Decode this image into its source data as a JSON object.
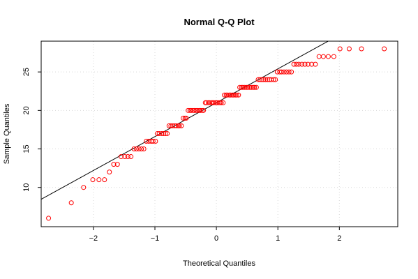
{
  "chart_data": {
    "type": "scatter",
    "title": "Normal Q-Q Plot",
    "xlabel": "Theoretical Quantiles",
    "ylabel": "Sample Quantiles",
    "xlim": [
      -2.85,
      2.95
    ],
    "ylim": [
      4.9,
      29.0
    ],
    "x_ticks": [
      -2,
      -1,
      0,
      1,
      2
    ],
    "y_ticks": [
      10,
      15,
      20,
      25
    ],
    "grid": true,
    "point_color": "#ff0000",
    "line_color": "#000000",
    "reference_line": {
      "intercept": 21.0,
      "slope": 4.4
    },
    "points": [
      [
        -2.73,
        6
      ],
      [
        -2.36,
        8
      ],
      [
        -2.16,
        10
      ],
      [
        -2.01,
        11
      ],
      [
        -1.91,
        11
      ],
      [
        -1.82,
        11
      ],
      [
        -1.74,
        12
      ],
      [
        -1.67,
        13
      ],
      [
        -1.61,
        13
      ],
      [
        -1.55,
        14
      ],
      [
        -1.49,
        14
      ],
      [
        -1.44,
        14
      ],
      [
        -1.39,
        14
      ],
      [
        -1.34,
        15
      ],
      [
        -1.3,
        15
      ],
      [
        -1.26,
        15
      ],
      [
        -1.22,
        15
      ],
      [
        -1.18,
        15
      ],
      [
        -1.14,
        16
      ],
      [
        -1.1,
        16
      ],
      [
        -1.06,
        16
      ],
      [
        -1.03,
        16
      ],
      [
        -0.99,
        16
      ],
      [
        -0.96,
        17
      ],
      [
        -0.93,
        17
      ],
      [
        -0.89,
        17
      ],
      [
        -0.86,
        17
      ],
      [
        -0.83,
        17
      ],
      [
        -0.8,
        17
      ],
      [
        -0.77,
        18
      ],
      [
        -0.74,
        18
      ],
      [
        -0.71,
        18
      ],
      [
        -0.68,
        18
      ],
      [
        -0.65,
        18
      ],
      [
        -0.62,
        18
      ],
      [
        -0.6,
        18
      ],
      [
        -0.57,
        18
      ],
      [
        -0.54,
        19
      ],
      [
        -0.51,
        19
      ],
      [
        -0.49,
        19
      ],
      [
        -0.46,
        20
      ],
      [
        -0.43,
        20
      ],
      [
        -0.41,
        20
      ],
      [
        -0.38,
        20
      ],
      [
        -0.36,
        20
      ],
      [
        -0.33,
        20
      ],
      [
        -0.31,
        20
      ],
      [
        -0.28,
        20
      ],
      [
        -0.26,
        20
      ],
      [
        -0.23,
        20
      ],
      [
        -0.21,
        20
      ],
      [
        -0.18,
        21
      ],
      [
        -0.16,
        21
      ],
      [
        -0.13,
        21
      ],
      [
        -0.11,
        21
      ],
      [
        -0.08,
        21
      ],
      [
        -0.06,
        21
      ],
      [
        -0.04,
        21
      ],
      [
        -0.01,
        21
      ],
      [
        0.01,
        21
      ],
      [
        0.04,
        21
      ],
      [
        0.06,
        21
      ],
      [
        0.08,
        21
      ],
      [
        0.11,
        21
      ],
      [
        0.13,
        22
      ],
      [
        0.16,
        22
      ],
      [
        0.18,
        22
      ],
      [
        0.21,
        22
      ],
      [
        0.23,
        22
      ],
      [
        0.26,
        22
      ],
      [
        0.28,
        22
      ],
      [
        0.31,
        22
      ],
      [
        0.33,
        22
      ],
      [
        0.36,
        22
      ],
      [
        0.38,
        23
      ],
      [
        0.41,
        23
      ],
      [
        0.43,
        23
      ],
      [
        0.46,
        23
      ],
      [
        0.49,
        23
      ],
      [
        0.51,
        23
      ],
      [
        0.54,
        23
      ],
      [
        0.57,
        23
      ],
      [
        0.6,
        23
      ],
      [
        0.62,
        23
      ],
      [
        0.65,
        23
      ],
      [
        0.68,
        24
      ],
      [
        0.71,
        24
      ],
      [
        0.74,
        24
      ],
      [
        0.77,
        24
      ],
      [
        0.8,
        24
      ],
      [
        0.83,
        24
      ],
      [
        0.86,
        24
      ],
      [
        0.89,
        24
      ],
      [
        0.93,
        24
      ],
      [
        0.96,
        24
      ],
      [
        0.99,
        25
      ],
      [
        1.03,
        25
      ],
      [
        1.06,
        25
      ],
      [
        1.1,
        25
      ],
      [
        1.14,
        25
      ],
      [
        1.18,
        25
      ],
      [
        1.22,
        25
      ],
      [
        1.26,
        26
      ],
      [
        1.3,
        26
      ],
      [
        1.34,
        26
      ],
      [
        1.39,
        26
      ],
      [
        1.44,
        26
      ],
      [
        1.49,
        26
      ],
      [
        1.55,
        26
      ],
      [
        1.61,
        26
      ],
      [
        1.67,
        27
      ],
      [
        1.74,
        27
      ],
      [
        1.82,
        27
      ],
      [
        1.91,
        27
      ],
      [
        2.01,
        28
      ],
      [
        2.16,
        28
      ],
      [
        2.36,
        28
      ],
      [
        2.73,
        28
      ]
    ]
  }
}
